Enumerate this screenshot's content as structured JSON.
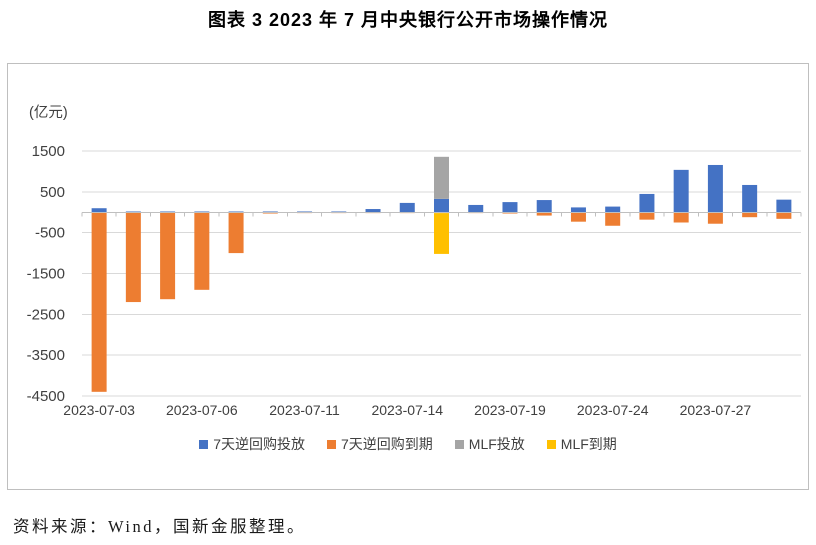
{
  "title": "图表 3 2023 年 7 月中央银行公开市场操作情况",
  "source": "资料来源：Wind，国新金服整理。",
  "chart_data": {
    "type": "bar",
    "stacked": true,
    "unit_label": "(亿元)",
    "categories": [
      "2023-07-03",
      "2023-07-04",
      "2023-07-05",
      "2023-07-06",
      "2023-07-07",
      "2023-07-10",
      "2023-07-11",
      "2023-07-12",
      "2023-07-13",
      "2023-07-14",
      "2023-07-17",
      "2023-07-18",
      "2023-07-19",
      "2023-07-20",
      "2023-07-21",
      "2023-07-24",
      "2023-07-25",
      "2023-07-26",
      "2023-07-27",
      "2023-07-28",
      "2023-07-31"
    ],
    "x_tick_indices": [
      0,
      3,
      6,
      9,
      12,
      15,
      18
    ],
    "x_tick_labels": [
      "2023-07-03",
      "2023-07-06",
      "2023-07-11",
      "2023-07-14",
      "2023-07-19",
      "2023-07-24",
      "2023-07-27"
    ],
    "series": [
      {
        "name": "7天逆回购投放",
        "color": "#4472C4",
        "values": [
          100,
          20,
          20,
          20,
          20,
          20,
          20,
          20,
          80,
          230,
          330,
          180,
          250,
          300,
          120,
          140,
          450,
          1040,
          1160,
          670,
          310
        ]
      },
      {
        "name": "7天逆回购到期",
        "color": "#ED7D31",
        "values": [
          -4400,
          -2200,
          -2130,
          -1900,
          -1000,
          -30,
          -20,
          -20,
          -20,
          -20,
          -20,
          -20,
          -30,
          -80,
          -230,
          -330,
          -180,
          -250,
          -280,
          -120,
          -160
        ]
      },
      {
        "name": "MLF投放",
        "color": "#A5A5A5",
        "values": [
          0,
          0,
          0,
          0,
          0,
          0,
          0,
          0,
          0,
          0,
          1030,
          0,
          0,
          0,
          0,
          0,
          0,
          0,
          0,
          0,
          0
        ]
      },
      {
        "name": "MLF到期",
        "color": "#FFC000",
        "values": [
          0,
          0,
          0,
          0,
          0,
          0,
          0,
          0,
          0,
          0,
          -1000,
          0,
          0,
          0,
          0,
          0,
          0,
          0,
          0,
          0,
          0
        ]
      }
    ],
    "ylim": [
      -4500,
      1500
    ],
    "y_major": 1000,
    "y_tick_labels": [
      1500,
      500,
      -500,
      -1500,
      -2500,
      -3500,
      -4500
    ],
    "grid": true,
    "legend_position": "bottom"
  }
}
